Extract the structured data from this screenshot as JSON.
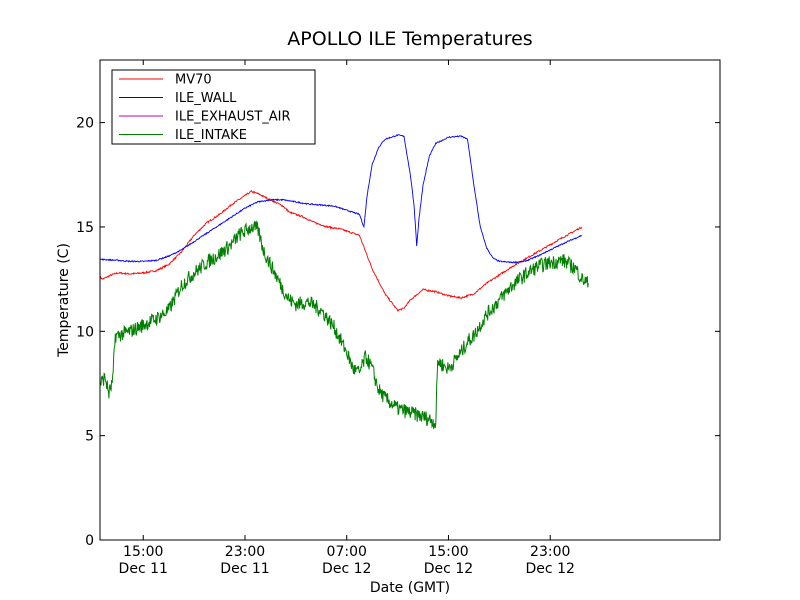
{
  "chart_data": {
    "type": "line",
    "title": "APOLLO ILE Temperatures",
    "xlabel": "Date (GMT)",
    "ylabel": "Temperature (C)",
    "xlim": [
      11.6,
      60.35
    ],
    "ylim": [
      0,
      23
    ],
    "x_unit": "hours since Dec 11 00:00 GMT",
    "grid": false,
    "legend_position": "top-left",
    "x_ticks": [
      {
        "value": 15,
        "time": "15:00",
        "date": "Dec 11"
      },
      {
        "value": 23,
        "time": "23:00",
        "date": "Dec 11"
      },
      {
        "value": 31,
        "time": "07:00",
        "date": "Dec 12"
      },
      {
        "value": 39,
        "time": "15:00",
        "date": "Dec 12"
      },
      {
        "value": 47,
        "time": "23:00",
        "date": "Dec 12"
      }
    ],
    "y_ticks": [
      0,
      5,
      10,
      15,
      20
    ],
    "series": [
      {
        "name": "MV70",
        "color": "#ff0000",
        "noise": 0.04,
        "points": [
          [
            11.6,
            12.6
          ],
          [
            11.8,
            12.5
          ],
          [
            12.5,
            12.7
          ],
          [
            13.0,
            12.8
          ],
          [
            14.0,
            12.75
          ],
          [
            15.0,
            12.8
          ],
          [
            16.0,
            12.9
          ],
          [
            17.0,
            13.2
          ],
          [
            18.0,
            13.8
          ],
          [
            19.0,
            14.6
          ],
          [
            20.0,
            15.2
          ],
          [
            21.0,
            15.6
          ],
          [
            22.0,
            16.1
          ],
          [
            23.0,
            16.5
          ],
          [
            23.5,
            16.7
          ],
          [
            24.0,
            16.6
          ],
          [
            25.0,
            16.3
          ],
          [
            26.0,
            16.0
          ],
          [
            26.5,
            15.7
          ],
          [
            27.5,
            15.5
          ],
          [
            28.5,
            15.2
          ],
          [
            29.5,
            15.0
          ],
          [
            30.5,
            14.9
          ],
          [
            31.5,
            14.7
          ],
          [
            32.0,
            14.6
          ],
          [
            33.0,
            13.0
          ],
          [
            34.0,
            11.8
          ],
          [
            35.0,
            11.0
          ],
          [
            35.5,
            11.1
          ],
          [
            36.0,
            11.5
          ],
          [
            37.0,
            12.0
          ],
          [
            38.0,
            11.9
          ],
          [
            39.0,
            11.7
          ],
          [
            40.0,
            11.6
          ],
          [
            41.0,
            11.8
          ],
          [
            42.0,
            12.3
          ],
          [
            44.0,
            13.1
          ],
          [
            46.0,
            13.8
          ],
          [
            48.0,
            14.5
          ],
          [
            49.5,
            15.0
          ]
        ]
      },
      {
        "name": "ILE_WALL",
        "color": "#0000ff",
        "noise": 0.03,
        "points": [
          [
            11.6,
            13.45
          ],
          [
            13.0,
            13.4
          ],
          [
            14.0,
            13.35
          ],
          [
            15.0,
            13.35
          ],
          [
            16.0,
            13.4
          ],
          [
            17.0,
            13.6
          ],
          [
            18.0,
            13.9
          ],
          [
            19.0,
            14.3
          ],
          [
            20.0,
            14.7
          ],
          [
            21.0,
            15.1
          ],
          [
            22.0,
            15.5
          ],
          [
            23.0,
            15.9
          ],
          [
            24.0,
            16.2
          ],
          [
            25.0,
            16.3
          ],
          [
            26.0,
            16.3
          ],
          [
            27.0,
            16.2
          ],
          [
            28.0,
            16.1
          ],
          [
            29.0,
            16.05
          ],
          [
            30.0,
            16.0
          ],
          [
            31.0,
            15.8
          ],
          [
            32.0,
            15.6
          ],
          [
            32.35,
            15.0
          ],
          [
            32.6,
            16.5
          ],
          [
            33.0,
            18.0
          ],
          [
            33.5,
            18.8
          ],
          [
            34.0,
            19.2
          ],
          [
            35.0,
            19.4
          ],
          [
            35.5,
            19.35
          ],
          [
            36.0,
            17.5
          ],
          [
            36.3,
            16.0
          ],
          [
            36.5,
            14.1
          ],
          [
            36.7,
            15.5
          ],
          [
            37.0,
            17.0
          ],
          [
            37.5,
            18.4
          ],
          [
            38.0,
            19.0
          ],
          [
            39.0,
            19.3
          ],
          [
            40.0,
            19.35
          ],
          [
            40.5,
            19.2
          ],
          [
            41.0,
            17.0
          ],
          [
            41.5,
            15.0
          ],
          [
            42.0,
            14.0
          ],
          [
            42.5,
            13.5
          ],
          [
            43.0,
            13.35
          ],
          [
            44.0,
            13.3
          ],
          [
            45.0,
            13.35
          ],
          [
            46.0,
            13.6
          ],
          [
            47.0,
            13.9
          ],
          [
            48.0,
            14.2
          ],
          [
            49.5,
            14.6
          ]
        ]
      },
      {
        "name": "ILE_EXHAUST_AIR",
        "color": "#bf00bf",
        "noise": 0,
        "points": []
      },
      {
        "name": "ILE_INTAKE",
        "color": "#008000",
        "noise": 0.35,
        "points": [
          [
            11.6,
            7.5
          ],
          [
            12.0,
            7.8
          ],
          [
            12.3,
            7.0
          ],
          [
            12.6,
            7.6
          ],
          [
            12.8,
            9.8
          ],
          [
            13.0,
            9.8
          ],
          [
            14.0,
            10.0
          ],
          [
            15.0,
            10.3
          ],
          [
            16.0,
            10.6
          ],
          [
            17.0,
            11.0
          ],
          [
            18.0,
            12.2
          ],
          [
            19.0,
            12.8
          ],
          [
            20.0,
            13.3
          ],
          [
            21.0,
            13.7
          ],
          [
            22.0,
            14.2
          ],
          [
            22.5,
            14.6
          ],
          [
            23.0,
            14.8
          ],
          [
            23.5,
            15.0
          ],
          [
            24.0,
            14.9
          ],
          [
            24.5,
            13.8
          ],
          [
            25.0,
            13.2
          ],
          [
            25.5,
            12.6
          ],
          [
            26.0,
            12.0
          ],
          [
            26.5,
            11.5
          ],
          [
            27.0,
            11.3
          ],
          [
            28.0,
            11.4
          ],
          [
            29.0,
            11.0
          ],
          [
            30.0,
            10.2
          ],
          [
            31.0,
            9.0
          ],
          [
            31.5,
            8.2
          ],
          [
            32.0,
            8.0
          ],
          [
            32.5,
            8.8
          ],
          [
            33.0,
            8.2
          ],
          [
            33.5,
            7.2
          ],
          [
            34.0,
            6.8
          ],
          [
            35.0,
            6.3
          ],
          [
            36.0,
            6.1
          ],
          [
            37.0,
            5.9
          ],
          [
            37.5,
            5.8
          ],
          [
            38.0,
            5.6
          ],
          [
            38.15,
            8.6
          ],
          [
            38.5,
            8.4
          ],
          [
            39.0,
            8.2
          ],
          [
            39.5,
            8.6
          ],
          [
            40.0,
            9.0
          ],
          [
            40.5,
            9.5
          ],
          [
            41.0,
            9.8
          ],
          [
            42.0,
            10.8
          ],
          [
            43.0,
            11.5
          ],
          [
            44.0,
            12.2
          ],
          [
            45.0,
            12.7
          ],
          [
            46.0,
            13.1
          ],
          [
            47.0,
            13.3
          ],
          [
            48.0,
            13.4
          ],
          [
            49.0,
            13.0
          ],
          [
            49.5,
            12.5
          ],
          [
            50.0,
            12.3
          ]
        ]
      }
    ]
  }
}
